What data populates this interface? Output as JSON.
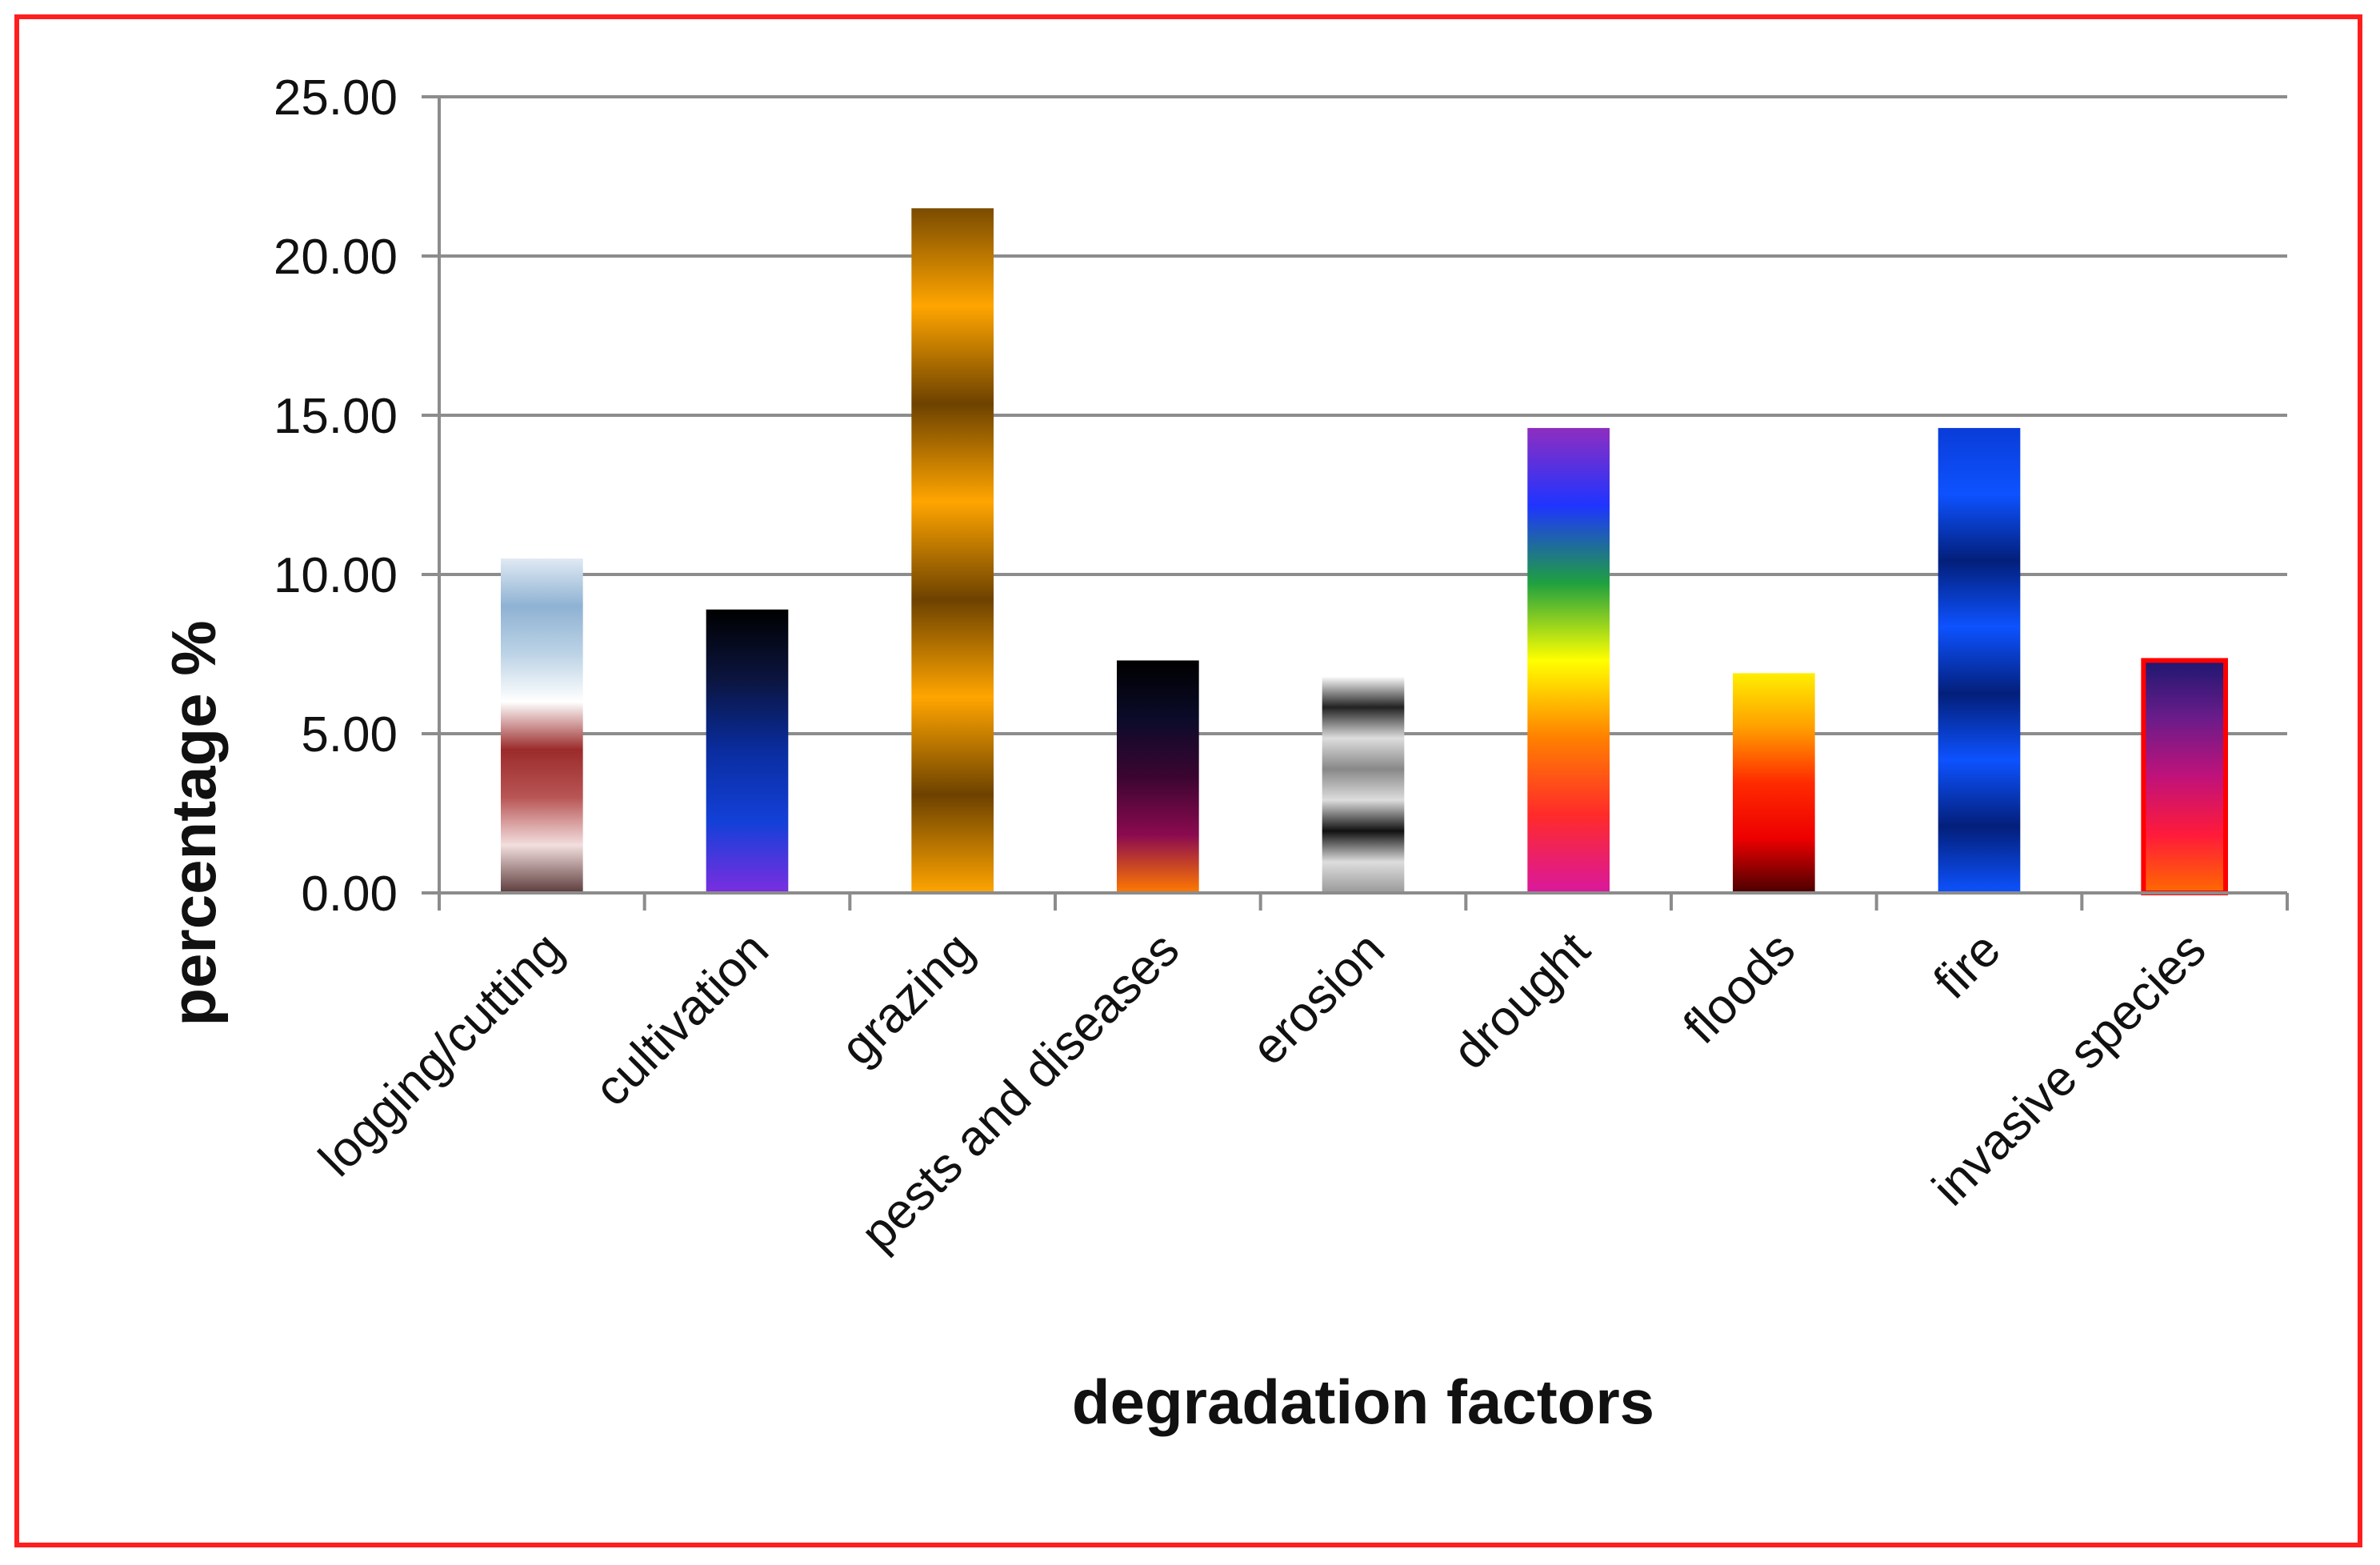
{
  "chart_data": {
    "type": "bar",
    "title": "",
    "xlabel": "degradation factors",
    "ylabel": "percentage %",
    "ylim": [
      0,
      25
    ],
    "yticks": [
      "0.00",
      "5.00",
      "10.00",
      "15.00",
      "20.00",
      "25.00"
    ],
    "grid": true,
    "categories": [
      "logging/cutting",
      "cultivation",
      "grazing",
      "pests and diseases",
      "erosion",
      "drought",
      "floods",
      "fire",
      "invasive species"
    ],
    "values": [
      10.5,
      8.9,
      21.5,
      7.3,
      6.8,
      14.6,
      6.9,
      14.6,
      7.3
    ],
    "bar_gradients": [
      [
        "#dfe9f3",
        "#8fb2d3",
        "#bcd3e6",
        "#ffffff",
        "#9c2b2b",
        "#b85555",
        "#f3dede",
        "#5c3b3b"
      ],
      [
        "#000000",
        "#0b1540",
        "#0a2da0",
        "#1340d8",
        "#7b2ee0"
      ],
      [
        "#7a4b00",
        "#ffa500",
        "#6d4200",
        "#ffa500",
        "#6d4200",
        "#ffa500",
        "#6d4200",
        "#ffa500"
      ],
      [
        "#000000",
        "#0b0b2a",
        "#3a0530",
        "#8b0a50",
        "#ff7a00"
      ],
      [
        "#ffffff",
        "#222222",
        "#dddddd",
        "#888888",
        "#dddddd",
        "#111111",
        "#dddddd",
        "#999999"
      ],
      [
        "#8e2ec0",
        "#1f34ff",
        "#1fa040",
        "#ffff00",
        "#ff8000",
        "#ff2a2a",
        "#d9189e"
      ],
      [
        "#ffee00",
        "#ff9e00",
        "#ff2a00",
        "#ee0000",
        "#4a0000"
      ],
      [
        "#0a3cd8",
        "#0d52ff",
        "#031f7a",
        "#0d52ff",
        "#031f7a",
        "#0d52ff",
        "#031f7a",
        "#0d52ff"
      ],
      [
        "#1d1870",
        "#6b1c8a",
        "#c0127a",
        "#ff1a3a",
        "#ff6a00"
      ]
    ],
    "colors": {
      "frame": "#ff1e1e",
      "grid": "#8c8c8c",
      "axis": "#8c8c8c",
      "highlight_outline": "#ff0000"
    }
  }
}
